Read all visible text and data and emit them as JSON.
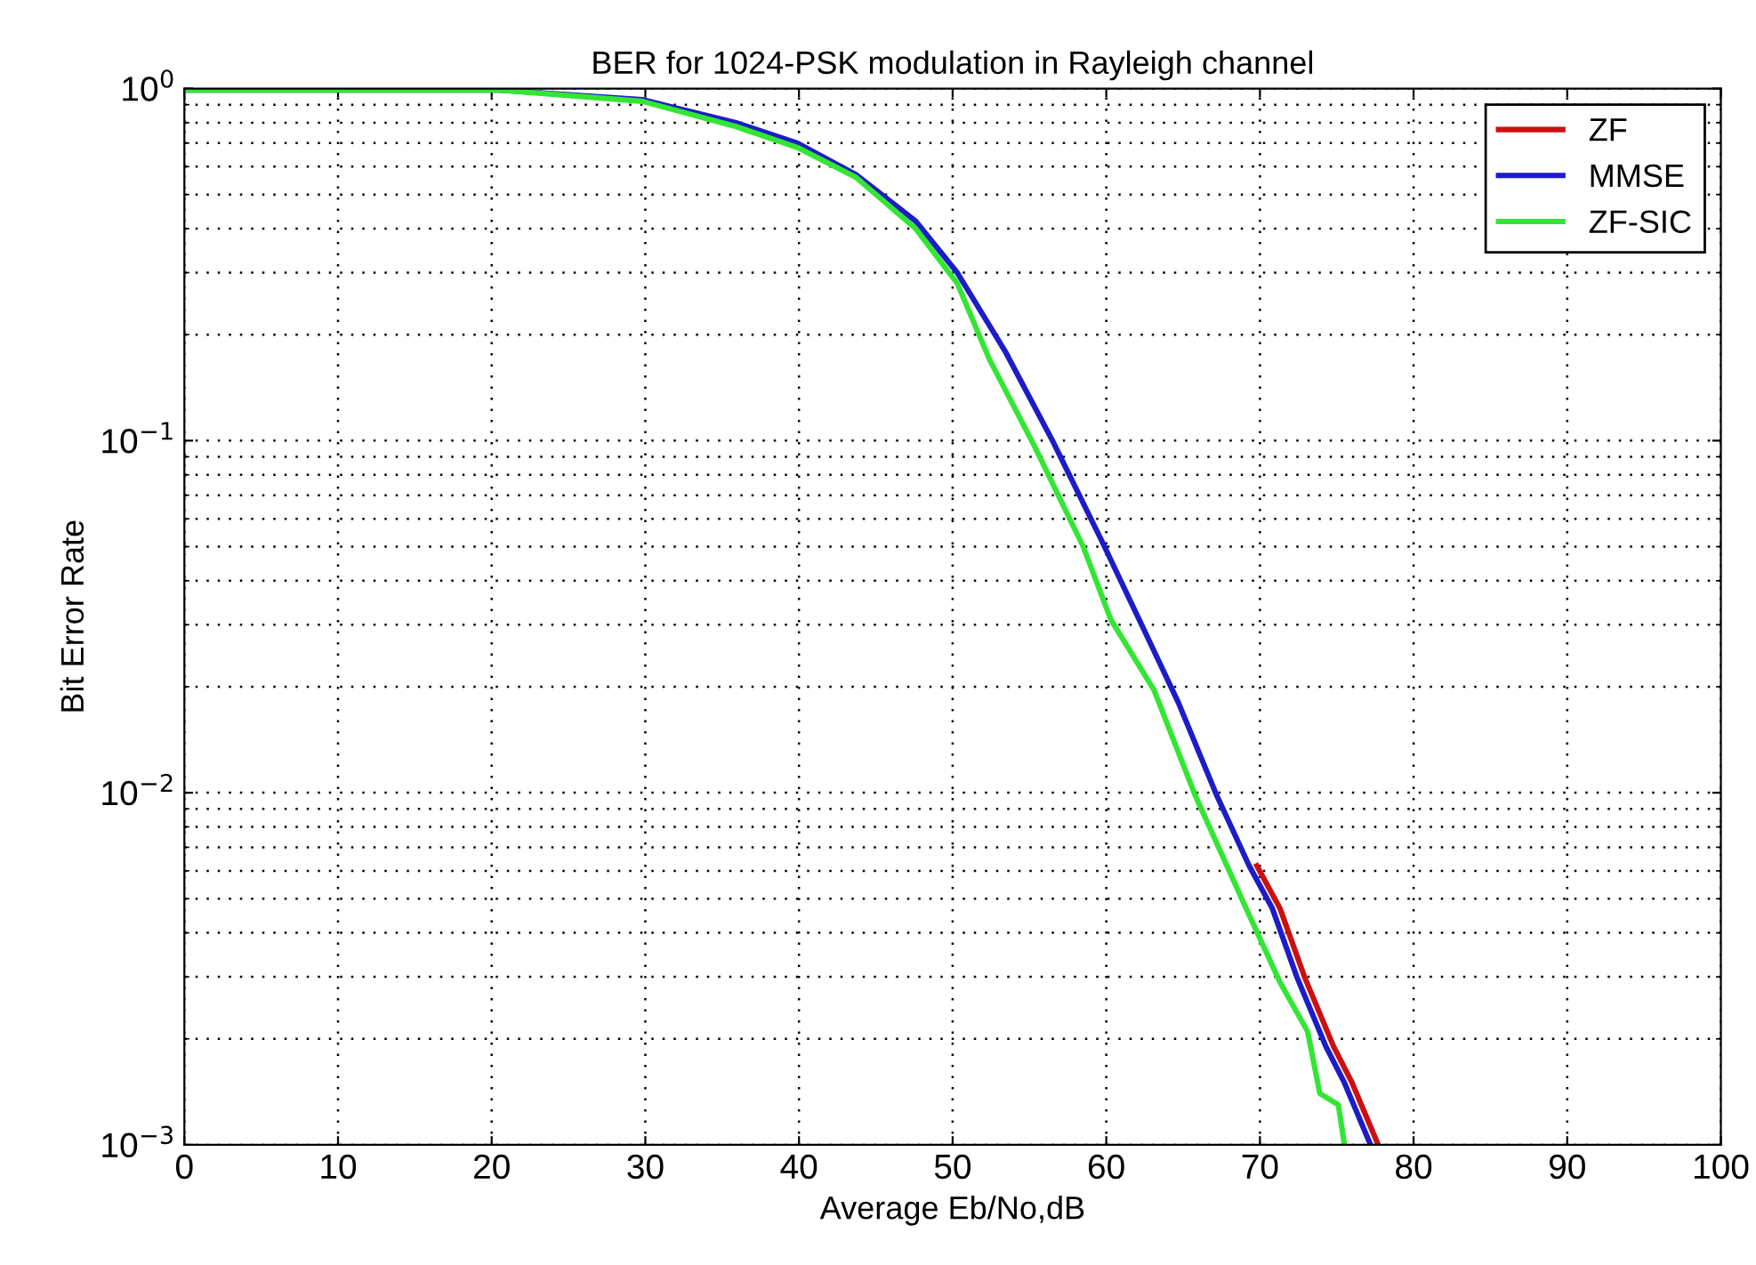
{
  "chart_data": {
    "type": "line",
    "title": "BER for 1024-PSK modulation in Rayleigh channel",
    "xlabel": "Average Eb/No,dB",
    "ylabel": "Bit Error Rate",
    "log": "y",
    "grid": true,
    "legend": "top right",
    "line_style": "solid",
    "marker": "none",
    "xlim": [
      0,
      100
    ],
    "xticks": [
      0,
      10,
      20,
      30,
      40,
      50,
      60,
      70,
      80,
      90,
      100
    ],
    "ylim": [
      0.001,
      1
    ],
    "yticks": [
      {
        "value": 0.001,
        "label": "10$^{−3}$"
      },
      {
        "value": 0.01,
        "label": "10$^{−2}$"
      },
      {
        "value": 0.1,
        "label": "10$^{−1}$"
      },
      {
        "value": 1,
        "label": "10$^{0}$"
      }
    ],
    "series": [
      {
        "name": "ZF",
        "color": "#cc1010",
        "x": [
          69.8,
          71.3,
          72.9,
          74.8,
          76.0,
          77.7
        ],
        "values": [
          0.0062,
          0.0047,
          0.003,
          0.0019,
          0.0015,
          0.001
        ]
      },
      {
        "name": "MMSE",
        "color": "#1c1cc8",
        "x": [
          0,
          10,
          20.5,
          29.8,
          35.9,
          39.9,
          43.7,
          47.6,
          50.3,
          53.4,
          56.5,
          59.7,
          62.3,
          64.7,
          67.2,
          69.3,
          70.8,
          72.4,
          74.3,
          75.5,
          77.2
        ],
        "values": [
          0.99,
          0.99,
          0.99,
          0.93,
          0.8,
          0.7,
          0.57,
          0.42,
          0.3,
          0.18,
          0.1,
          0.052,
          0.03,
          0.018,
          0.0098,
          0.0062,
          0.0047,
          0.003,
          0.0019,
          0.0015,
          0.001
        ]
      },
      {
        "name": "ZF-SIC",
        "color": "#33e633",
        "x": [
          0,
          10,
          20.5,
          29.8,
          35.9,
          39.9,
          43.7,
          47.6,
          50.3,
          52.4,
          55.3,
          58.5,
          60.3,
          63.1,
          65.8,
          69.0,
          71.3,
          73.1,
          73.9,
          75.1,
          75.5
        ],
        "values": [
          0.99,
          0.99,
          0.99,
          0.92,
          0.78,
          0.68,
          0.56,
          0.4,
          0.28,
          0.17,
          0.097,
          0.05,
          0.031,
          0.0196,
          0.0098,
          0.0048,
          0.0029,
          0.0021,
          0.0014,
          0.0013,
          0.001
        ]
      }
    ]
  }
}
